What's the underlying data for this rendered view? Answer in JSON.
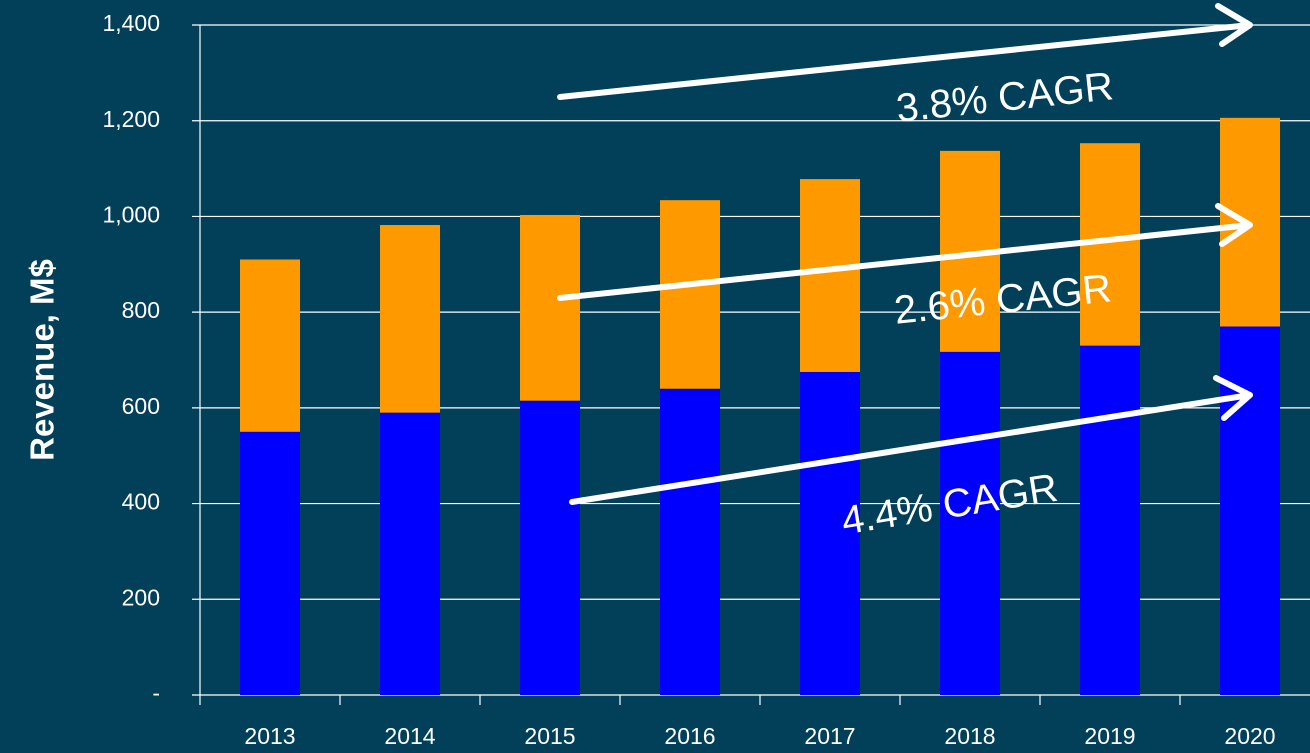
{
  "chart_data": {
    "type": "stacked_bar",
    "y_label": "Revenue, M$",
    "categories": [
      "2013",
      "2014",
      "2015",
      "2016",
      "2017",
      "2018",
      "2019",
      "2020"
    ],
    "series": [
      {
        "color": "#0000ff",
        "values": [
          550,
          590,
          615,
          640,
          675,
          717,
          730,
          770
        ]
      },
      {
        "color": "#ff9900",
        "values": [
          360,
          392,
          388,
          394,
          403,
          420,
          423,
          436
        ]
      }
    ],
    "ylim": [
      0,
      1400
    ],
    "yticks": [
      {
        "value": 0,
        "label": "-"
      },
      200,
      400,
      600,
      800,
      {
        "value": 1000,
        "label": "1,000"
      },
      {
        "value": 1200,
        "label": "1,200"
      },
      {
        "value": 1400,
        "label": "1,400"
      }
    ],
    "grid": true,
    "annotations": [
      "3.8% CAGR",
      "2.6% CAGR",
      "4.4% CAGR"
    ]
  }
}
